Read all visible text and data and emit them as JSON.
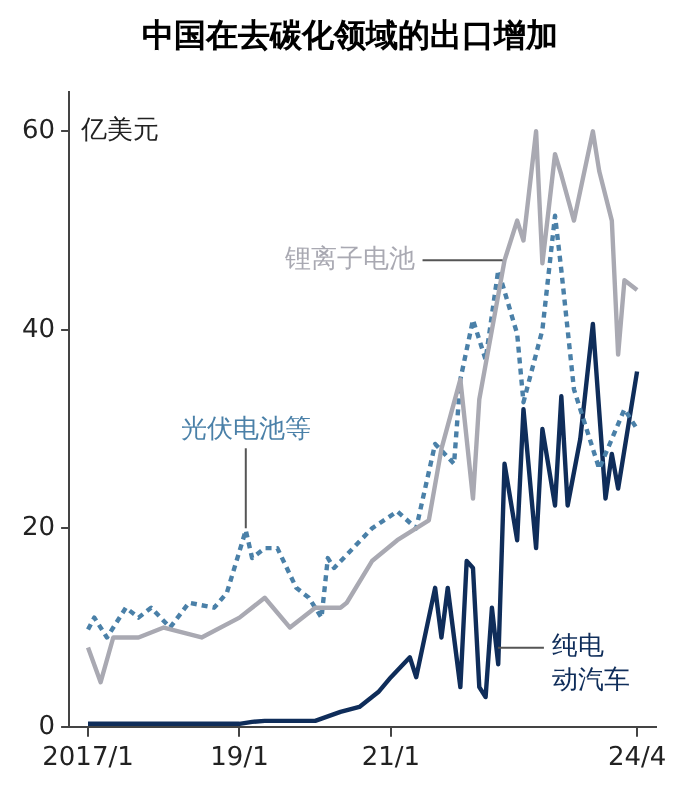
{
  "chart_data": {
    "type": "line",
    "title": "中国在去碳化领域的出口增加",
    "ylabel": "亿美元",
    "xlim": [
      "2016-10",
      "2024-07"
    ],
    "xticks": [
      {
        "value": "2017-01",
        "label": "2017/1"
      },
      {
        "value": "2019-01",
        "label": "19/1"
      },
      {
        "value": "2021-01",
        "label": "21/1"
      },
      {
        "value": "2024-04",
        "label": "24/4"
      }
    ],
    "ylim": [
      0,
      64
    ],
    "yticks": [
      0,
      20,
      40,
      60
    ],
    "grid": false,
    "legend": false,
    "marker": "none",
    "series": [
      {
        "name": "锂离子电池",
        "color": "#a9a9b2",
        "line_style": "solid",
        "x": [
          "2017-01",
          "2017-03",
          "2017-05",
          "2017-09",
          "2018-01",
          "2018-07",
          "2019-01",
          "2019-05",
          "2019-09",
          "2020-01",
          "2020-05",
          "2020-06",
          "2020-10",
          "2021-02",
          "2021-07",
          "2021-09",
          "2021-12",
          "2022-02",
          "2022-03",
          "2022-07",
          "2022-09",
          "2022-10",
          "2022-12",
          "2023-01",
          "2023-03",
          "2023-04",
          "2023-06",
          "2023-09",
          "2023-10",
          "2023-12",
          "2024-01",
          "2024-02",
          "2024-04"
        ],
        "values": [
          8,
          4.5,
          9,
          9,
          10,
          9,
          11,
          13,
          10,
          12,
          12,
          12.5,
          16.7,
          18.8,
          20.8,
          28,
          35,
          23,
          33,
          47,
          51,
          49,
          60,
          46.7,
          57.7,
          55.6,
          51,
          60,
          56,
          51,
          37.5,
          45,
          44
        ]
      },
      {
        "name": "光伏电池等",
        "color": "#4a80a8",
        "line_style": "dotted",
        "x": [
          "2017-01",
          "2017-02",
          "2017-04",
          "2017-07",
          "2017-09",
          "2017-11",
          "2018-02",
          "2018-05",
          "2018-09",
          "2018-11",
          "2019-02",
          "2019-03",
          "2019-05",
          "2019-07",
          "2019-10",
          "2019-12",
          "2020-02",
          "2020-03",
          "2020-04",
          "2020-10",
          "2021-02",
          "2021-05",
          "2021-08",
          "2021-11",
          "2021-12",
          "2022-02",
          "2022-04",
          "2022-06",
          "2022-09",
          "2022-10",
          "2023-01",
          "2023-03",
          "2023-04",
          "2023-06",
          "2023-09",
          "2023-10",
          "2023-12",
          "2024-02",
          "2024-04"
        ],
        "values": [
          9.8,
          11,
          9,
          12,
          11,
          12,
          10,
          12.5,
          12,
          13.5,
          19.8,
          17,
          18,
          18,
          14,
          13,
          11,
          17,
          16,
          20,
          21.7,
          20,
          28.5,
          26.5,
          35,
          41,
          37,
          46,
          39.6,
          32.7,
          40,
          51.5,
          46,
          34,
          28,
          26,
          29,
          32,
          30
        ]
      },
      {
        "name": "纯电动汽车",
        "color": "#0f2d5a",
        "line_style": "solid",
        "x": [
          "2017-01",
          "2019-01",
          "2019-03",
          "2019-05",
          "2019-08",
          "2020-01",
          "2020-05",
          "2020-08",
          "2020-11",
          "2021-01",
          "2021-04",
          "2021-05",
          "2021-08",
          "2021-09",
          "2021-10",
          "2021-12",
          "2022-01",
          "2022-02",
          "2022-03",
          "2022-04",
          "2022-05",
          "2022-06",
          "2022-07",
          "2022-09",
          "2022-10",
          "2022-12",
          "2023-01",
          "2023-03",
          "2023-04",
          "2023-05",
          "2023-07",
          "2023-09",
          "2023-11",
          "2023-12",
          "2024-01",
          "2024-04"
        ],
        "values": [
          0.3,
          0.3,
          0.5,
          0.6,
          0.6,
          0.6,
          1.5,
          2,
          3.5,
          5,
          7,
          5,
          14,
          9,
          14,
          4,
          16.7,
          16,
          4,
          3,
          12,
          6.3,
          26.5,
          18.8,
          32,
          18,
          30,
          22.3,
          33.3,
          22.3,
          29,
          40.6,
          23,
          27.5,
          24,
          35.8
        ]
      }
    ]
  }
}
